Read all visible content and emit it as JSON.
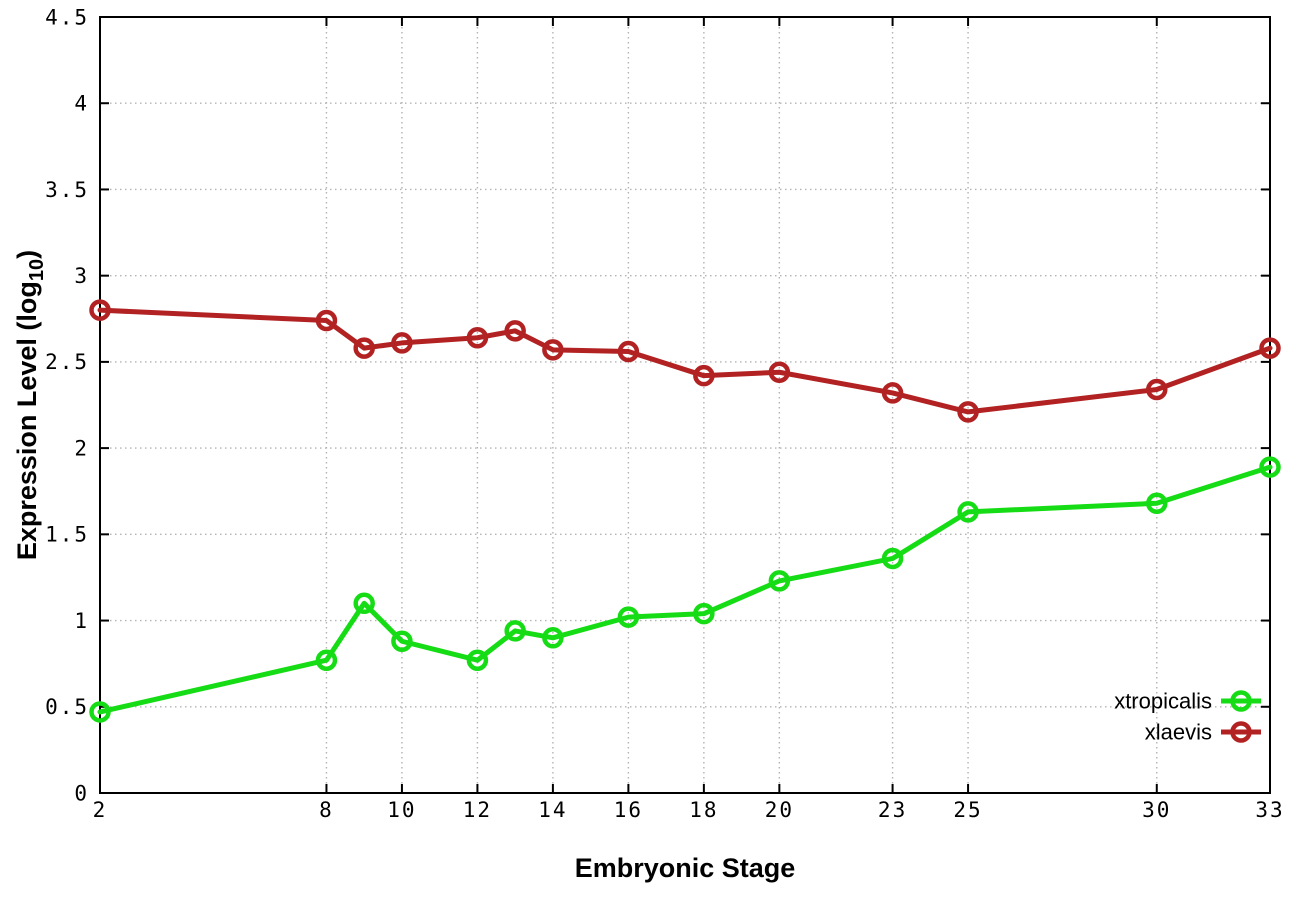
{
  "figure": {
    "background": "#ffffff"
  },
  "chart_data": {
    "type": "line",
    "title": "",
    "xlabel": "Embryonic Stage",
    "ylabel": {
      "text": "Expression Level (log",
      "subscript": "10",
      "suffix": ")"
    },
    "xlim": [
      2,
      33
    ],
    "ylim": [
      0,
      4.5
    ],
    "x_ticks": [
      2,
      8,
      10,
      12,
      14,
      16,
      18,
      20,
      23,
      25,
      30,
      33
    ],
    "y_ticks": [
      0,
      0.5,
      1,
      1.5,
      2,
      2.5,
      3,
      3.5,
      4,
      4.5
    ],
    "grid": "dotted",
    "legend_position": "bottom-right",
    "x": [
      2,
      8,
      9,
      10,
      12,
      13,
      14,
      16,
      18,
      20,
      23,
      25,
      30,
      33
    ],
    "series": [
      {
        "name": "xtropicalis",
        "color": "#16dc16",
        "values": [
          0.47,
          0.77,
          1.1,
          0.88,
          0.77,
          0.94,
          0.9,
          1.02,
          1.04,
          1.23,
          1.36,
          1.63,
          1.68,
          1.89
        ]
      },
      {
        "name": "xlaevis",
        "color": "#b22222",
        "values": [
          2.8,
          2.74,
          2.58,
          2.61,
          2.64,
          2.68,
          2.57,
          2.56,
          2.42,
          2.44,
          2.32,
          2.21,
          2.34,
          2.58
        ]
      }
    ],
    "colors": {
      "axis": "#000000",
      "grid": "#b3b3b3",
      "tick_text": "#1a1a1a",
      "label_text": "#000000"
    }
  }
}
